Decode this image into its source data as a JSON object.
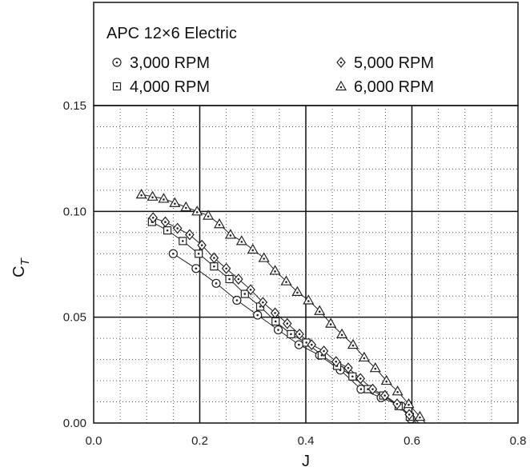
{
  "chart_data": {
    "type": "scatter",
    "title": "APC 12×6 Electric",
    "xlabel": "J",
    "ylabel": {
      "main": "C",
      "sub": "T"
    },
    "xlim": [
      0.0,
      0.8
    ],
    "ylim": [
      0.0,
      0.15
    ],
    "x_ticks": [
      "0.0",
      "0.2",
      "0.4",
      "0.6",
      "0.8"
    ],
    "y_ticks": [
      "0.00",
      "0.05",
      "0.10",
      "0.15"
    ],
    "x_tick_values": [
      0.0,
      0.2,
      0.4,
      0.6,
      0.8
    ],
    "y_tick_values": [
      0.0,
      0.05,
      0.1,
      0.15
    ],
    "grid": {
      "major": true,
      "minor": true,
      "minor_style": "dotted"
    },
    "legend_placement": "top",
    "series": [
      {
        "name": "3,000 RPM",
        "marker": "circle-dot",
        "x": [
          0.15,
          0.193,
          0.231,
          0.27,
          0.309,
          0.348,
          0.387,
          0.426,
          0.465,
          0.504,
          0.542,
          0.58,
          0.598
        ],
        "y": [
          0.08,
          0.073,
          0.066,
          0.058,
          0.051,
          0.044,
          0.037,
          0.032,
          0.025,
          0.016,
          0.012,
          0.008,
          0.002
        ]
      },
      {
        "name": "4,000 RPM",
        "marker": "square-dot",
        "x": [
          0.11,
          0.139,
          0.168,
          0.198,
          0.227,
          0.256,
          0.285,
          0.314,
          0.343,
          0.372,
          0.401,
          0.43,
          0.459,
          0.488,
          0.517,
          0.546,
          0.575,
          0.596
        ],
        "y": [
          0.095,
          0.091,
          0.086,
          0.08,
          0.074,
          0.068,
          0.061,
          0.055,
          0.048,
          0.042,
          0.038,
          0.032,
          0.027,
          0.022,
          0.016,
          0.013,
          0.008,
          0.003
        ]
      },
      {
        "name": "5,000 RPM",
        "marker": "diamond-dot",
        "x": [
          0.112,
          0.135,
          0.158,
          0.181,
          0.204,
          0.227,
          0.25,
          0.273,
          0.296,
          0.319,
          0.342,
          0.365,
          0.388,
          0.411,
          0.434,
          0.457,
          0.48,
          0.503,
          0.526,
          0.549,
          0.572,
          0.595
        ],
        "y": [
          0.097,
          0.095,
          0.092,
          0.089,
          0.084,
          0.078,
          0.073,
          0.068,
          0.063,
          0.057,
          0.052,
          0.047,
          0.042,
          0.037,
          0.034,
          0.029,
          0.026,
          0.021,
          0.016,
          0.013,
          0.009,
          0.004
        ]
      },
      {
        "name": "6,000 RPM",
        "marker": "triangle-dot",
        "x": [
          0.09,
          0.111,
          0.132,
          0.153,
          0.174,
          0.195,
          0.216,
          0.237,
          0.258,
          0.279,
          0.3,
          0.321,
          0.342,
          0.363,
          0.384,
          0.405,
          0.426,
          0.447,
          0.468,
          0.489,
          0.51,
          0.531,
          0.552,
          0.573,
          0.594,
          0.615
        ],
        "y": [
          0.108,
          0.107,
          0.106,
          0.104,
          0.102,
          0.1,
          0.098,
          0.094,
          0.089,
          0.086,
          0.082,
          0.078,
          0.072,
          0.067,
          0.062,
          0.058,
          0.053,
          0.047,
          0.042,
          0.037,
          0.031,
          0.026,
          0.02,
          0.015,
          0.009,
          0.003
        ]
      }
    ]
  },
  "colors": {
    "axis": "#111111",
    "grid_major": "#111111",
    "grid_minor": "#555555",
    "marker_stroke": "#222222",
    "line": "#222222"
  }
}
